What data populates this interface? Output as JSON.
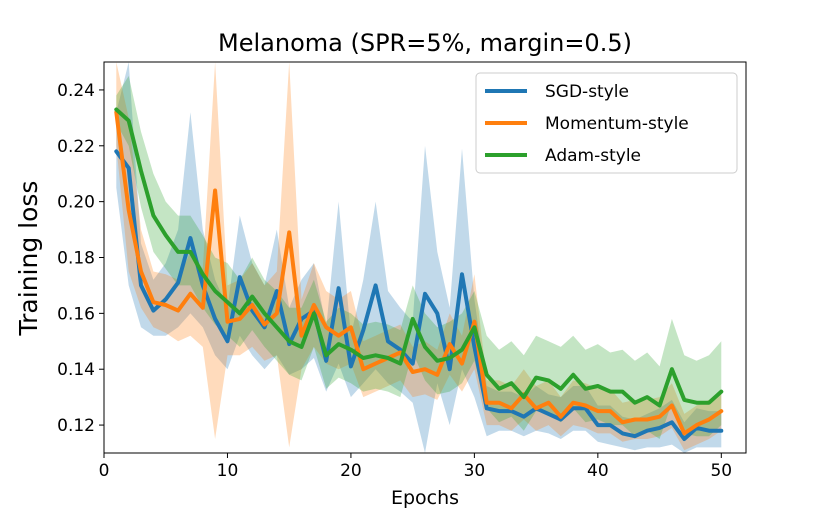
{
  "chart_data": {
    "type": "line",
    "title": "Melanoma (SPR=5%, margin=0.5)",
    "xlabel": "Epochs",
    "ylabel": "Training loss",
    "xlim": [
      0,
      52
    ],
    "ylim": [
      0.11,
      0.25
    ],
    "xticks": [
      0,
      10,
      20,
      30,
      40,
      50
    ],
    "yticks": [
      0.12,
      0.14,
      0.16,
      0.18,
      0.2,
      0.22,
      0.24
    ],
    "grid": false,
    "legend_position": "top-right",
    "x": [
      1,
      2,
      3,
      4,
      5,
      6,
      7,
      8,
      9,
      10,
      11,
      12,
      13,
      14,
      15,
      16,
      17,
      18,
      19,
      20,
      21,
      22,
      23,
      24,
      25,
      26,
      27,
      28,
      29,
      30,
      31,
      32,
      33,
      34,
      35,
      36,
      37,
      38,
      39,
      40,
      41,
      42,
      43,
      44,
      45,
      46,
      47,
      48,
      49,
      50
    ],
    "series": [
      {
        "name": "SGD-style",
        "color": "#1f77b4",
        "values": [
          0.218,
          0.212,
          0.17,
          0.161,
          0.165,
          0.171,
          0.187,
          0.17,
          0.158,
          0.15,
          0.173,
          0.161,
          0.155,
          0.168,
          0.149,
          0.158,
          0.161,
          0.143,
          0.169,
          0.141,
          0.154,
          0.17,
          0.15,
          0.147,
          0.142,
          0.167,
          0.16,
          0.14,
          0.174,
          0.148,
          0.126,
          0.125,
          0.125,
          0.123,
          0.126,
          0.124,
          0.122,
          0.126,
          0.126,
          0.12,
          0.12,
          0.117,
          0.116,
          0.118,
          0.119,
          0.121,
          0.115,
          0.119,
          0.118,
          0.118
        ],
        "lower": [
          0.205,
          0.17,
          0.155,
          0.152,
          0.152,
          0.155,
          0.16,
          0.155,
          0.145,
          0.14,
          0.152,
          0.145,
          0.14,
          0.145,
          0.138,
          0.14,
          0.144,
          0.132,
          0.142,
          0.13,
          0.135,
          0.14,
          0.135,
          0.132,
          0.128,
          0.11,
          0.135,
          0.12,
          0.14,
          0.13,
          0.116,
          0.118,
          0.118,
          0.116,
          0.118,
          0.117,
          0.115,
          0.118,
          0.118,
          0.114,
          0.113,
          0.112,
          0.111,
          0.112,
          0.112,
          0.113,
          0.11,
          0.112,
          0.112,
          0.112
        ],
        "upper": [
          0.232,
          0.25,
          0.185,
          0.172,
          0.178,
          0.19,
          0.232,
          0.19,
          0.172,
          0.162,
          0.195,
          0.178,
          0.17,
          0.19,
          0.162,
          0.172,
          0.178,
          0.155,
          0.2,
          0.152,
          0.172,
          0.2,
          0.168,
          0.162,
          0.157,
          0.22,
          0.182,
          0.162,
          0.219,
          0.165,
          0.134,
          0.132,
          0.132,
          0.13,
          0.134,
          0.131,
          0.13,
          0.134,
          0.134,
          0.127,
          0.127,
          0.123,
          0.122,
          0.124,
          0.126,
          0.129,
          0.121,
          0.126,
          0.125,
          0.125
        ]
      },
      {
        "name": "Momentum-style",
        "color": "#ff7f0e",
        "values": [
          0.232,
          0.197,
          0.175,
          0.164,
          0.163,
          0.161,
          0.167,
          0.162,
          0.204,
          0.157,
          0.158,
          0.163,
          0.156,
          0.16,
          0.189,
          0.152,
          0.163,
          0.155,
          0.152,
          0.155,
          0.14,
          0.142,
          0.144,
          0.146,
          0.139,
          0.14,
          0.138,
          0.149,
          0.142,
          0.157,
          0.128,
          0.128,
          0.126,
          0.131,
          0.126,
          0.128,
          0.123,
          0.128,
          0.127,
          0.125,
          0.125,
          0.121,
          0.122,
          0.122,
          0.123,
          0.127,
          0.117,
          0.12,
          0.122,
          0.125
        ],
        "lower": [
          0.22,
          0.175,
          0.162,
          0.155,
          0.153,
          0.15,
          0.152,
          0.148,
          0.115,
          0.145,
          0.145,
          0.148,
          0.143,
          0.145,
          0.112,
          0.14,
          0.148,
          0.142,
          0.14,
          0.142,
          0.13,
          0.132,
          0.134,
          0.136,
          0.13,
          0.131,
          0.129,
          0.138,
          0.132,
          0.14,
          0.12,
          0.12,
          0.118,
          0.122,
          0.118,
          0.12,
          0.116,
          0.12,
          0.119,
          0.117,
          0.117,
          0.114,
          0.115,
          0.115,
          0.116,
          0.119,
          0.111,
          0.113,
          0.115,
          0.118
        ],
        "upper": [
          0.25,
          0.23,
          0.19,
          0.175,
          0.174,
          0.172,
          0.182,
          0.176,
          0.25,
          0.17,
          0.172,
          0.178,
          0.17,
          0.175,
          0.25,
          0.165,
          0.178,
          0.168,
          0.165,
          0.168,
          0.15,
          0.152,
          0.154,
          0.156,
          0.148,
          0.15,
          0.147,
          0.16,
          0.152,
          0.174,
          0.136,
          0.136,
          0.134,
          0.14,
          0.134,
          0.136,
          0.13,
          0.136,
          0.135,
          0.133,
          0.133,
          0.128,
          0.129,
          0.129,
          0.13,
          0.135,
          0.124,
          0.127,
          0.129,
          0.132
        ]
      },
      {
        "name": "Adam-style",
        "color": "#2ca02c",
        "values": [
          0.233,
          0.229,
          0.211,
          0.195,
          0.188,
          0.182,
          0.182,
          0.174,
          0.168,
          0.164,
          0.16,
          0.166,
          0.16,
          0.155,
          0.15,
          0.148,
          0.16,
          0.145,
          0.149,
          0.147,
          0.144,
          0.145,
          0.144,
          0.142,
          0.158,
          0.148,
          0.143,
          0.144,
          0.147,
          0.155,
          0.138,
          0.133,
          0.135,
          0.13,
          0.137,
          0.136,
          0.133,
          0.138,
          0.133,
          0.134,
          0.132,
          0.132,
          0.128,
          0.13,
          0.127,
          0.14,
          0.129,
          0.128,
          0.128,
          0.132
        ],
        "lower": [
          0.228,
          0.22,
          0.198,
          0.182,
          0.176,
          0.17,
          0.17,
          0.162,
          0.156,
          0.152,
          0.148,
          0.154,
          0.148,
          0.143,
          0.138,
          0.136,
          0.148,
          0.133,
          0.137,
          0.135,
          0.132,
          0.133,
          0.132,
          0.13,
          0.146,
          0.136,
          0.131,
          0.132,
          0.135,
          0.143,
          0.126,
          0.121,
          0.123,
          0.118,
          0.125,
          0.124,
          0.121,
          0.126,
          0.121,
          0.122,
          0.12,
          0.12,
          0.116,
          0.118,
          0.115,
          0.128,
          0.117,
          0.116,
          0.116,
          0.12
        ],
        "upper": [
          0.238,
          0.245,
          0.225,
          0.21,
          0.2,
          0.195,
          0.195,
          0.188,
          0.18,
          0.178,
          0.172,
          0.18,
          0.172,
          0.168,
          0.162,
          0.162,
          0.172,
          0.157,
          0.162,
          0.16,
          0.156,
          0.157,
          0.156,
          0.154,
          0.17,
          0.16,
          0.155,
          0.157,
          0.16,
          0.168,
          0.152,
          0.147,
          0.15,
          0.145,
          0.152,
          0.15,
          0.148,
          0.152,
          0.147,
          0.149,
          0.146,
          0.147,
          0.143,
          0.146,
          0.141,
          0.158,
          0.145,
          0.143,
          0.145,
          0.15
        ]
      }
    ]
  }
}
